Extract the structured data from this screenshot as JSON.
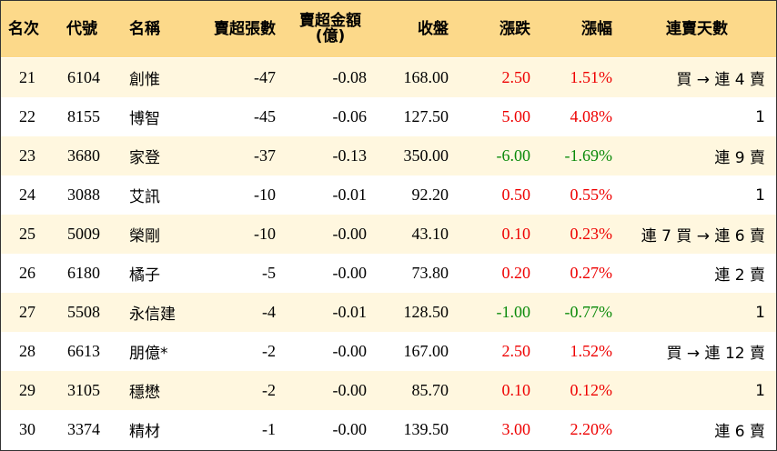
{
  "colors": {
    "header_bg": "#fcd98a",
    "row_alt_bg": "#fff7df",
    "up": "#ee0000",
    "down": "#0a8a0a"
  },
  "headers": {
    "rank": "名次",
    "code": "代號",
    "name": "名稱",
    "net_sell_lots": "賣超張數",
    "net_sell_amount_line1": "賣超金額",
    "net_sell_amount_line2": "(億)",
    "close": "收盤",
    "change": "漲跌",
    "change_pct": "漲幅",
    "streak": "連賣天數"
  },
  "rows": [
    {
      "rank": "21",
      "code": "6104",
      "name": "創惟",
      "net_sell_lots": "-47",
      "net_sell_amount": "-0.08",
      "close": "168.00",
      "change": "2.50",
      "change_pct": "1.51%",
      "direction": "up",
      "streak": "買 → 連 4 賣"
    },
    {
      "rank": "22",
      "code": "8155",
      "name": "博智",
      "net_sell_lots": "-45",
      "net_sell_amount": "-0.06",
      "close": "127.50",
      "change": "5.00",
      "change_pct": "4.08%",
      "direction": "up",
      "streak": "1"
    },
    {
      "rank": "23",
      "code": "3680",
      "name": "家登",
      "net_sell_lots": "-37",
      "net_sell_amount": "-0.13",
      "close": "350.00",
      "change": "-6.00",
      "change_pct": "-1.69%",
      "direction": "down",
      "streak": "連 9 賣"
    },
    {
      "rank": "24",
      "code": "3088",
      "name": "艾訊",
      "net_sell_lots": "-10",
      "net_sell_amount": "-0.01",
      "close": "92.20",
      "change": "0.50",
      "change_pct": "0.55%",
      "direction": "up",
      "streak": "1"
    },
    {
      "rank": "25",
      "code": "5009",
      "name": "榮剛",
      "net_sell_lots": "-10",
      "net_sell_amount": "-0.00",
      "close": "43.10",
      "change": "0.10",
      "change_pct": "0.23%",
      "direction": "up",
      "streak": "連 7 買 → 連 6 賣"
    },
    {
      "rank": "26",
      "code": "6180",
      "name": "橘子",
      "net_sell_lots": "-5",
      "net_sell_amount": "-0.00",
      "close": "73.80",
      "change": "0.20",
      "change_pct": "0.27%",
      "direction": "up",
      "streak": "連 2 賣"
    },
    {
      "rank": "27",
      "code": "5508",
      "name": "永信建",
      "net_sell_lots": "-4",
      "net_sell_amount": "-0.01",
      "close": "128.50",
      "change": "-1.00",
      "change_pct": "-0.77%",
      "direction": "down",
      "streak": "1"
    },
    {
      "rank": "28",
      "code": "6613",
      "name": "朋億*",
      "net_sell_lots": "-2",
      "net_sell_amount": "-0.00",
      "close": "167.00",
      "change": "2.50",
      "change_pct": "1.52%",
      "direction": "up",
      "streak": "買 → 連 12 賣"
    },
    {
      "rank": "29",
      "code": "3105",
      "name": "穩懋",
      "net_sell_lots": "-2",
      "net_sell_amount": "-0.00",
      "close": "85.70",
      "change": "0.10",
      "change_pct": "0.12%",
      "direction": "up",
      "streak": "1"
    },
    {
      "rank": "30",
      "code": "3374",
      "name": "精材",
      "net_sell_lots": "-1",
      "net_sell_amount": "-0.00",
      "close": "139.50",
      "change": "3.00",
      "change_pct": "2.20%",
      "direction": "up",
      "streak": "連 6 賣"
    }
  ]
}
